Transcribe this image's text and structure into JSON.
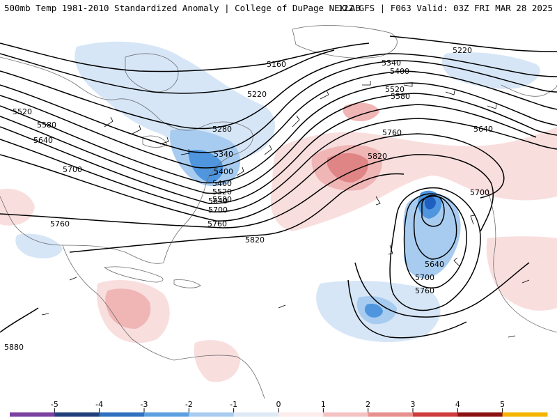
{
  "header": {
    "title_left": "500mb Temp 1981-2010 Standardized Anomaly | College of DuPage NEXLAB",
    "title_right": "12Z GFS | F063 Valid: 03Z FRI MAR 28 2025"
  },
  "colors": {
    "cold_strong": "#1f5fbf",
    "cold_mid": "#4f96df",
    "cold_light": "#a8ccf0",
    "cold_faint": "#d6e6f7",
    "warm_faint": "#f9dede",
    "warm_light": "#f0b6b6",
    "warm_mid": "#e08585",
    "contour": "#000000",
    "coast": "#6e6e6e"
  },
  "height_labels": [
    "5160",
    "5220",
    "5280",
    "5340",
    "5400",
    "5460",
    "5520",
    "5580",
    "5640",
    "5700",
    "5760",
    "5820",
    "5880"
  ],
  "colorbar": {
    "ticks": [
      "-5",
      "-4",
      "-3",
      "-2",
      "-1",
      "0",
      "1",
      "2",
      "3",
      "4",
      "5"
    ],
    "colors": [
      "#7b3fa0",
      "#1e3f7a",
      "#2f6fc0",
      "#5aa0e0",
      "#a8ccf0",
      "#dfe9f5",
      "#fdecec",
      "#f5c2c2",
      "#e89090",
      "#cf3a3a",
      "#8c1212",
      "#f4b400"
    ]
  }
}
